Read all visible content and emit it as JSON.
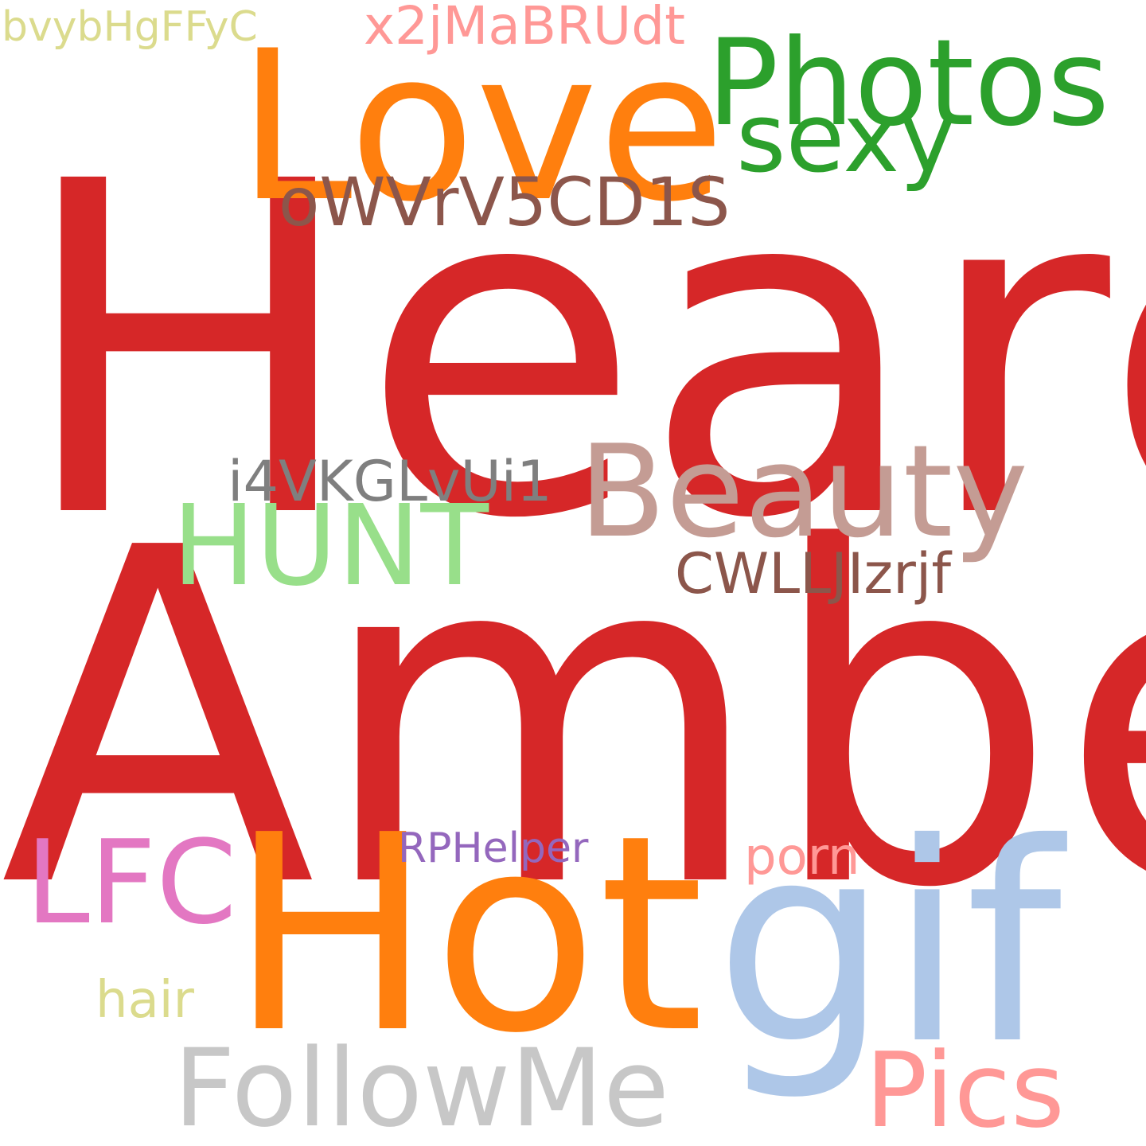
{
  "background": "#ffffff",
  "words": [
    {
      "key": "heard",
      "text": "Heard",
      "color": "#d62728"
    },
    {
      "key": "amber",
      "text": "Amber",
      "color": "#d62728"
    },
    {
      "key": "love",
      "text": "Love",
      "color": "#ff7f0e"
    },
    {
      "key": "hot",
      "text": "Hot",
      "color": "#ff7f0e"
    },
    {
      "key": "gif",
      "text": "gif",
      "color": "#aec7e8"
    },
    {
      "key": "photos",
      "text": "Photos",
      "color": "#2ca02c"
    },
    {
      "key": "sexy",
      "text": "sexy",
      "color": "#2ca02c"
    },
    {
      "key": "beauty",
      "text": "Beauty",
      "color": "#c49c94"
    },
    {
      "key": "hunt",
      "text": "HUNT",
      "color": "#98df8a"
    },
    {
      "key": "lfc",
      "text": "LFC",
      "color": "#e377c2"
    },
    {
      "key": "followme",
      "text": "FollowMe",
      "color": "#c7c7c7"
    },
    {
      "key": "pics",
      "text": "Pics",
      "color": "#ff9896"
    },
    {
      "key": "owvr",
      "text": "oWVrV5CD1S",
      "color": "#8c564b"
    },
    {
      "key": "i4vk",
      "text": "i4VKGLvUi1",
      "color": "#7f7f7f"
    },
    {
      "key": "cwll",
      "text": "CWLLJIzrjf",
      "color": "#8c564b"
    },
    {
      "key": "x2jm",
      "text": "x2jMaBRUdt",
      "color": "#ff9896"
    },
    {
      "key": "bvyb",
      "text": "bvybHgFFyC",
      "color": "#dbdb8d"
    },
    {
      "key": "rphelper",
      "text": "RPHelper",
      "color": "#9467bd"
    },
    {
      "key": "porn",
      "text": "porn",
      "color": "#ff9896"
    },
    {
      "key": "hair",
      "text": "hair",
      "color": "#dbdb8d"
    }
  ]
}
